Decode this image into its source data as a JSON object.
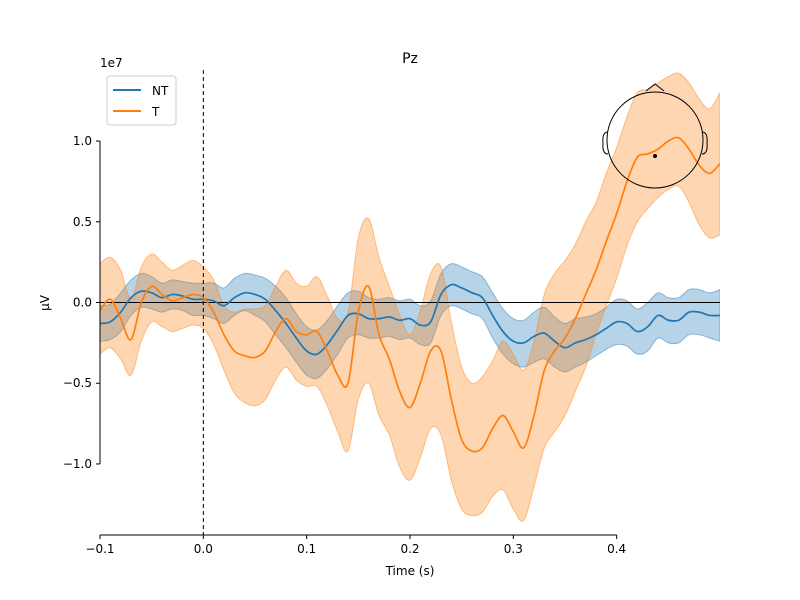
{
  "chart_data": {
    "type": "line",
    "title": "Pz",
    "xlabel": "Time (s)",
    "ylabel": "µV",
    "y_scale_label": "1e7",
    "xlim": [
      -0.1,
      0.5
    ],
    "ylim": [
      -1.44,
      1.44
    ],
    "x_ticks": [
      -0.1,
      0.0,
      0.1,
      0.2,
      0.3,
      0.4
    ],
    "x_tick_labels": [
      "−0.1",
      "0.0",
      "0.1",
      "0.2",
      "0.3",
      "0.4"
    ],
    "y_ticks": [
      -1.0,
      -0.5,
      0.0,
      0.5,
      1.0
    ],
    "y_tick_labels": [
      "−1.0",
      "−0.5",
      "0.0",
      "0.5",
      "1.0"
    ],
    "y_unit_multiplier": 10000000,
    "grid": false,
    "legend_position": "top-left",
    "event_marker_x": 0.0,
    "zero_line_y": 0.0,
    "sensor_inset": "head-outline-top-right",
    "series": [
      {
        "name": "NT",
        "color": "#1f77b4",
        "band_color": "#1f77b4",
        "x": [
          -0.1,
          -0.09,
          -0.08,
          -0.07,
          -0.06,
          -0.05,
          -0.04,
          -0.03,
          -0.02,
          -0.01,
          0.0,
          0.01,
          0.02,
          0.03,
          0.04,
          0.05,
          0.06,
          0.07,
          0.08,
          0.09,
          0.1,
          0.11,
          0.12,
          0.13,
          0.14,
          0.15,
          0.16,
          0.17,
          0.18,
          0.19,
          0.2,
          0.21,
          0.22,
          0.23,
          0.24,
          0.25,
          0.26,
          0.27,
          0.28,
          0.29,
          0.3,
          0.31,
          0.32,
          0.33,
          0.34,
          0.35,
          0.36,
          0.37,
          0.38,
          0.39,
          0.4,
          0.41,
          0.42,
          0.43,
          0.44,
          0.45,
          0.46,
          0.47,
          0.48,
          0.49,
          0.5
        ],
        "values": [
          -0.13,
          -0.12,
          -0.06,
          0.03,
          0.07,
          0.06,
          0.03,
          0.05,
          0.04,
          0.02,
          0.02,
          0.01,
          -0.02,
          0.03,
          0.06,
          0.05,
          0.02,
          -0.05,
          -0.13,
          -0.22,
          -0.3,
          -0.32,
          -0.26,
          -0.17,
          -0.08,
          -0.07,
          -0.1,
          -0.1,
          -0.09,
          -0.11,
          -0.1,
          -0.14,
          -0.12,
          0.05,
          0.11,
          0.09,
          0.06,
          0.03,
          -0.08,
          -0.18,
          -0.24,
          -0.25,
          -0.21,
          -0.19,
          -0.24,
          -0.28,
          -0.25,
          -0.23,
          -0.2,
          -0.16,
          -0.12,
          -0.13,
          -0.18,
          -0.15,
          -0.08,
          -0.11,
          -0.11,
          -0.06,
          -0.06,
          -0.08,
          -0.08
        ],
        "lower": [
          -0.24,
          -0.23,
          -0.18,
          -0.08,
          -0.03,
          -0.04,
          -0.06,
          -0.04,
          -0.05,
          -0.08,
          -0.08,
          -0.1,
          -0.13,
          -0.08,
          -0.05,
          -0.08,
          -0.12,
          -0.2,
          -0.28,
          -0.37,
          -0.45,
          -0.47,
          -0.41,
          -0.32,
          -0.22,
          -0.2,
          -0.22,
          -0.22,
          -0.21,
          -0.23,
          -0.22,
          -0.26,
          -0.25,
          -0.08,
          -0.02,
          -0.04,
          -0.07,
          -0.1,
          -0.22,
          -0.32,
          -0.38,
          -0.4,
          -0.37,
          -0.35,
          -0.4,
          -0.43,
          -0.4,
          -0.37,
          -0.33,
          -0.29,
          -0.26,
          -0.27,
          -0.32,
          -0.3,
          -0.22,
          -0.25,
          -0.25,
          -0.2,
          -0.2,
          -0.22,
          -0.24
        ],
        "upper": [
          -0.02,
          -0.01,
          0.06,
          0.14,
          0.18,
          0.16,
          0.12,
          0.14,
          0.13,
          0.12,
          0.12,
          0.12,
          0.09,
          0.15,
          0.18,
          0.17,
          0.15,
          0.1,
          0.03,
          -0.07,
          -0.15,
          -0.17,
          -0.11,
          -0.02,
          0.06,
          0.07,
          0.03,
          0.02,
          0.03,
          0.01,
          0.02,
          -0.02,
          0.01,
          0.18,
          0.24,
          0.22,
          0.19,
          0.16,
          0.06,
          -0.04,
          -0.1,
          -0.11,
          -0.06,
          -0.03,
          -0.09,
          -0.13,
          -0.1,
          -0.09,
          -0.07,
          -0.03,
          0.02,
          0.01,
          -0.04,
          0.0,
          0.06,
          0.03,
          0.03,
          0.08,
          0.08,
          0.06,
          0.08
        ]
      },
      {
        "name": "T",
        "color": "#ff7f0e",
        "band_color": "#ff7f0e",
        "x": [
          -0.1,
          -0.09,
          -0.08,
          -0.07,
          -0.06,
          -0.05,
          -0.04,
          -0.03,
          -0.02,
          -0.01,
          0.0,
          0.01,
          0.02,
          0.03,
          0.04,
          0.05,
          0.06,
          0.07,
          0.08,
          0.09,
          0.1,
          0.11,
          0.12,
          0.13,
          0.14,
          0.15,
          0.16,
          0.17,
          0.18,
          0.19,
          0.2,
          0.21,
          0.22,
          0.23,
          0.24,
          0.25,
          0.26,
          0.27,
          0.28,
          0.29,
          0.3,
          0.31,
          0.32,
          0.33,
          0.34,
          0.35,
          0.36,
          0.37,
          0.38,
          0.39,
          0.4,
          0.41,
          0.42,
          0.43,
          0.44,
          0.45,
          0.46,
          0.47,
          0.48,
          0.49,
          0.5
        ],
        "values": [
          -0.05,
          0.02,
          -0.1,
          -0.23,
          0.0,
          0.1,
          0.05,
          0.01,
          0.03,
          0.05,
          0.03,
          -0.06,
          -0.2,
          -0.3,
          -0.33,
          -0.34,
          -0.3,
          -0.18,
          -0.1,
          -0.18,
          -0.2,
          -0.18,
          -0.3,
          -0.45,
          -0.5,
          -0.06,
          0.1,
          -0.2,
          -0.35,
          -0.55,
          -0.65,
          -0.5,
          -0.3,
          -0.3,
          -0.6,
          -0.85,
          -0.92,
          -0.9,
          -0.78,
          -0.7,
          -0.8,
          -0.9,
          -0.7,
          -0.42,
          -0.3,
          -0.22,
          -0.1,
          0.05,
          0.2,
          0.38,
          0.55,
          0.75,
          0.9,
          0.92,
          0.95,
          1.0,
          1.02,
          0.95,
          0.85,
          0.8,
          0.86
        ],
        "lower": [
          -0.32,
          -0.28,
          -0.35,
          -0.45,
          -0.24,
          -0.12,
          -0.15,
          -0.18,
          -0.16,
          -0.14,
          -0.16,
          -0.26,
          -0.42,
          -0.56,
          -0.62,
          -0.64,
          -0.6,
          -0.48,
          -0.4,
          -0.48,
          -0.52,
          -0.52,
          -0.64,
          -0.8,
          -0.92,
          -0.6,
          -0.5,
          -0.7,
          -0.82,
          -1.02,
          -1.1,
          -0.96,
          -0.78,
          -0.82,
          -1.1,
          -1.28,
          -1.32,
          -1.3,
          -1.2,
          -1.16,
          -1.28,
          -1.35,
          -1.14,
          -0.9,
          -0.8,
          -0.7,
          -0.55,
          -0.4,
          -0.2,
          -0.02,
          0.15,
          0.35,
          0.5,
          0.58,
          0.65,
          0.7,
          0.72,
          0.62,
          0.48,
          0.4,
          0.42
        ],
        "upper": [
          0.24,
          0.28,
          0.2,
          0.02,
          0.22,
          0.3,
          0.25,
          0.2,
          0.23,
          0.26,
          0.22,
          0.14,
          -0.02,
          -0.06,
          -0.04,
          -0.04,
          -0.02,
          0.1,
          0.2,
          0.12,
          0.1,
          0.16,
          0.04,
          -0.1,
          -0.06,
          0.4,
          0.52,
          0.28,
          0.1,
          -0.08,
          -0.2,
          -0.05,
          0.18,
          0.22,
          -0.12,
          -0.4,
          -0.5,
          -0.46,
          -0.36,
          -0.24,
          -0.32,
          -0.42,
          -0.24,
          0.05,
          0.18,
          0.26,
          0.36,
          0.5,
          0.62,
          0.8,
          0.96,
          1.15,
          1.3,
          1.32,
          1.36,
          1.4,
          1.42,
          1.36,
          1.26,
          1.2,
          1.3
        ]
      }
    ]
  }
}
